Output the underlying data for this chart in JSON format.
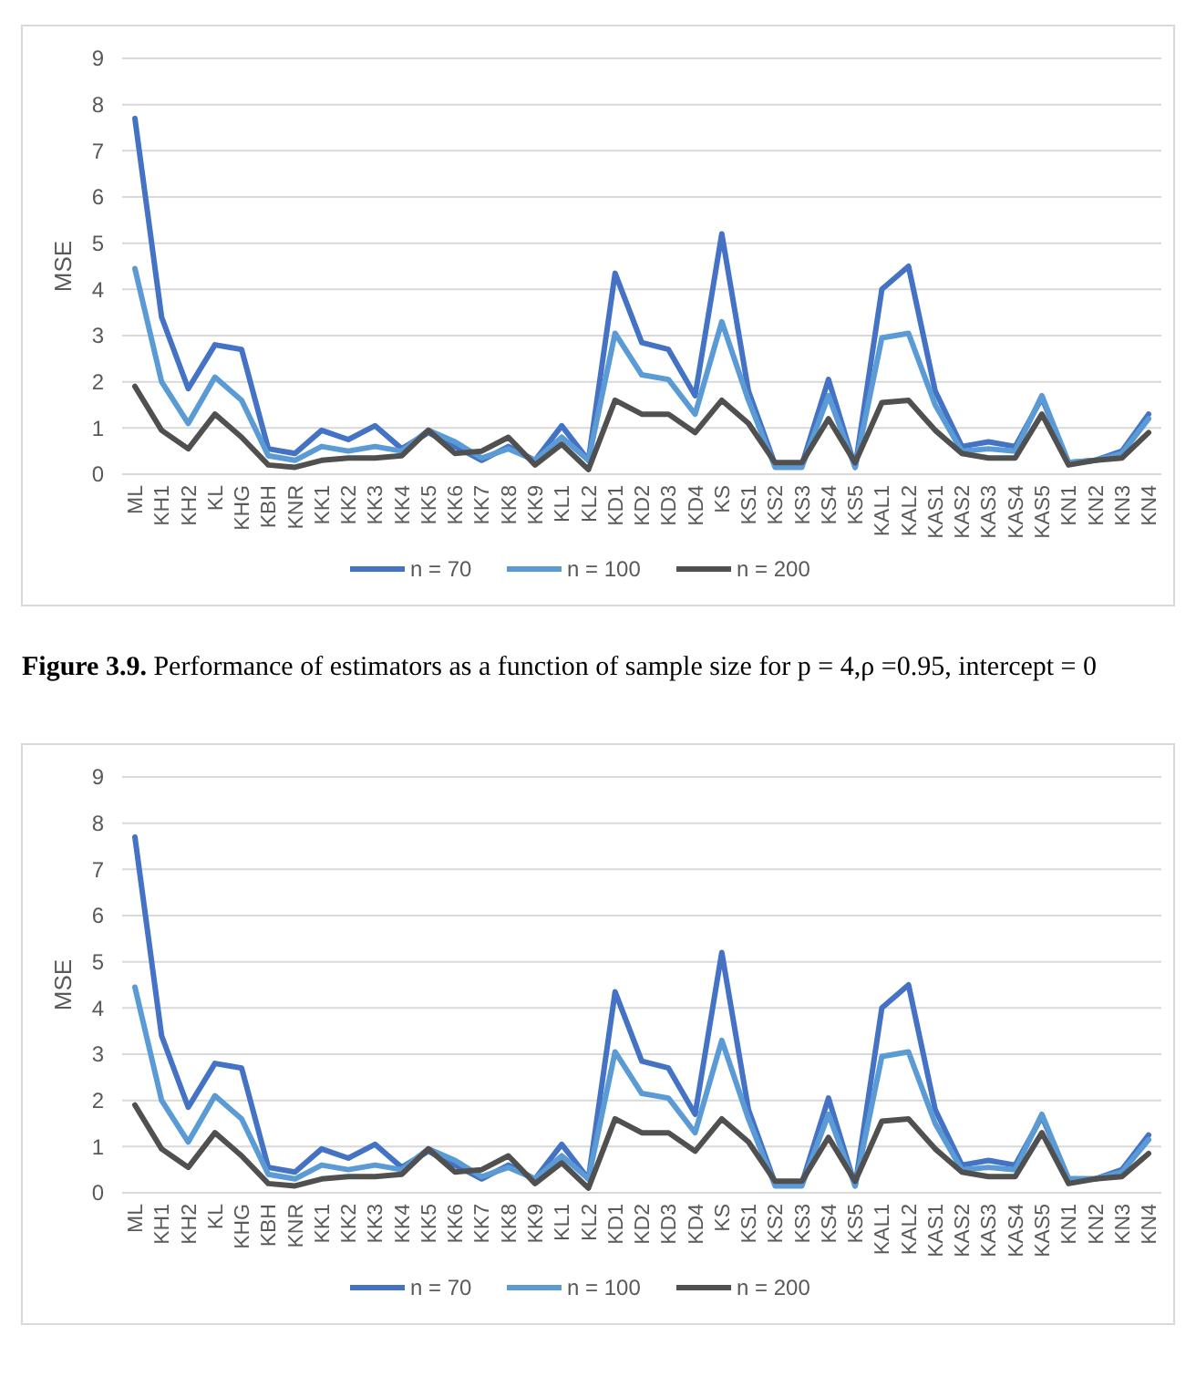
{
  "chart_data": [
    {
      "type": "line",
      "ylabel": "MSE",
      "ylim": [
        0,
        9
      ],
      "yticks": [
        0,
        1,
        2,
        3,
        4,
        5,
        6,
        7,
        8,
        9
      ],
      "grid": "y",
      "legend": "bottom",
      "marker": "none",
      "line_style": "solid",
      "categories": [
        "ML",
        "KH1",
        "KH2",
        "KL",
        "KHG",
        "KBH",
        "KNR",
        "KK1",
        "KK2",
        "KK3",
        "KK4",
        "KK5",
        "KK6",
        "KK7",
        "KK8",
        "KK9",
        "KL1",
        "KL2",
        "KD1",
        "KD2",
        "KD3",
        "KD4",
        "KS",
        "KS1",
        "KS2",
        "KS3",
        "KS4",
        "KS5",
        "KAL1",
        "KAL2",
        "KAS1",
        "KAS2",
        "KAS3",
        "KAS4",
        "KAS5",
        "KN1",
        "KN2",
        "KN3",
        "KN4"
      ],
      "series": [
        {
          "name": "n = 70",
          "color": "#4472c4",
          "values": [
            7.7,
            3.4,
            1.85,
            2.8,
            2.7,
            0.55,
            0.45,
            0.95,
            0.75,
            1.05,
            0.55,
            0.9,
            0.6,
            0.3,
            0.6,
            0.3,
            1.05,
            0.3,
            4.35,
            2.85,
            2.7,
            1.7,
            5.2,
            1.8,
            0.2,
            0.2,
            2.05,
            0.15,
            4.0,
            4.5,
            1.8,
            0.6,
            0.7,
            0.6,
            1.65,
            0.25,
            0.3,
            0.5,
            1.3
          ]
        },
        {
          "name": "n = 100",
          "color": "#5b9bd5",
          "values": [
            4.45,
            2.0,
            1.1,
            2.1,
            1.6,
            0.4,
            0.3,
            0.6,
            0.5,
            0.6,
            0.5,
            0.95,
            0.7,
            0.35,
            0.55,
            0.3,
            0.8,
            0.3,
            3.05,
            2.15,
            2.05,
            1.3,
            3.3,
            1.6,
            0.15,
            0.15,
            1.7,
            0.15,
            2.95,
            3.05,
            1.5,
            0.5,
            0.55,
            0.5,
            1.7,
            0.25,
            0.3,
            0.45,
            1.2
          ]
        },
        {
          "name": "n = 200",
          "color": "#505050",
          "values": [
            1.9,
            0.95,
            0.55,
            1.3,
            0.8,
            0.2,
            0.15,
            0.3,
            0.35,
            0.35,
            0.4,
            0.95,
            0.45,
            0.5,
            0.8,
            0.2,
            0.65,
            0.1,
            1.6,
            1.3,
            1.3,
            0.9,
            1.6,
            1.1,
            0.25,
            0.25,
            1.2,
            0.25,
            1.55,
            1.6,
            0.95,
            0.45,
            0.35,
            0.35,
            1.3,
            0.2,
            0.3,
            0.35,
            0.9
          ]
        }
      ],
      "annotations": [
        "Figure 3.9. Performance of estimators as a function of sample size for p = 4,ρ =0.95, intercept = 0"
      ]
    },
    {
      "type": "line",
      "ylabel": "MSE",
      "ylim": [
        0,
        9
      ],
      "yticks": [
        0,
        1,
        2,
        3,
        4,
        5,
        6,
        7,
        8,
        9
      ],
      "grid": "y",
      "legend": "bottom",
      "marker": "none",
      "line_style": "solid",
      "categories": [
        "ML",
        "KH1",
        "KH2",
        "KL",
        "KHG",
        "KBH",
        "KNR",
        "KK1",
        "KK2",
        "KK3",
        "KK4",
        "KK5",
        "KK6",
        "KK7",
        "KK8",
        "KK9",
        "KL1",
        "KL2",
        "KD1",
        "KD2",
        "KD3",
        "KD4",
        "KS",
        "KS1",
        "KS2",
        "KS3",
        "KS4",
        "KS5",
        "KAL1",
        "KAL2",
        "KAS1",
        "KAS2",
        "KAS3",
        "KAS4",
        "KAS5",
        "KN1",
        "KN2",
        "KN3",
        "KN4"
      ],
      "series": [
        {
          "name": "n = 70",
          "color": "#4472c4",
          "values": [
            7.7,
            3.4,
            1.85,
            2.8,
            2.7,
            0.55,
            0.45,
            0.95,
            0.75,
            1.05,
            0.55,
            0.9,
            0.6,
            0.3,
            0.6,
            0.3,
            1.05,
            0.3,
            4.35,
            2.85,
            2.7,
            1.7,
            5.2,
            1.8,
            0.2,
            0.2,
            2.05,
            0.15,
            4.0,
            4.5,
            1.8,
            0.6,
            0.7,
            0.6,
            1.65,
            0.3,
            0.3,
            0.5,
            1.25
          ]
        },
        {
          "name": "n = 100",
          "color": "#5b9bd5",
          "values": [
            4.45,
            2.0,
            1.1,
            2.1,
            1.6,
            0.4,
            0.3,
            0.6,
            0.5,
            0.6,
            0.5,
            0.95,
            0.7,
            0.35,
            0.55,
            0.3,
            0.8,
            0.3,
            3.05,
            2.15,
            2.05,
            1.3,
            3.3,
            1.6,
            0.15,
            0.15,
            1.7,
            0.15,
            2.95,
            3.05,
            1.5,
            0.5,
            0.55,
            0.5,
            1.7,
            0.3,
            0.3,
            0.45,
            1.15
          ]
        },
        {
          "name": "n = 200",
          "color": "#505050",
          "values": [
            1.9,
            0.95,
            0.55,
            1.3,
            0.8,
            0.2,
            0.15,
            0.3,
            0.35,
            0.35,
            0.4,
            0.95,
            0.45,
            0.5,
            0.8,
            0.2,
            0.65,
            0.1,
            1.6,
            1.3,
            1.3,
            0.9,
            1.6,
            1.1,
            0.25,
            0.25,
            1.2,
            0.25,
            1.55,
            1.6,
            0.95,
            0.45,
            0.35,
            0.35,
            1.3,
            0.2,
            0.3,
            0.35,
            0.85
          ]
        }
      ]
    }
  ]
}
